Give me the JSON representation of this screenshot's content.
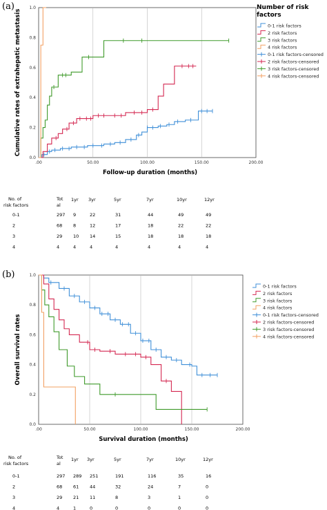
{
  "colors": {
    "s0": "#3f8fd8",
    "s1": "#d42750",
    "s2": "#3f9a2a",
    "s3": "#f2a062"
  },
  "chart_data": [
    {
      "panel": "(a)",
      "type": "line",
      "step": true,
      "legend_title": "Number of risk factors",
      "legend_placement": "right",
      "xlabel": "Follow-up duration (months)",
      "ylabel": "Cumulative rates of extrahepatic metastasis",
      "xlim": [
        0,
        200
      ],
      "ylim": [
        0,
        1
      ],
      "xticks": [
        ".00",
        "50.00",
        "100.00",
        "150.00",
        "200.00"
      ],
      "yticks": [
        "0.0",
        "0.2",
        "0.4",
        "0.6",
        "0.8",
        "1.0"
      ],
      "grid": true,
      "legend": [
        "0-1 risk factors",
        "2 risk factors",
        "3 risk factors",
        "4 risk factors",
        "0-1 risk factors-censored",
        "2 risk factors-censored",
        "3 risk factors-censored",
        "4 risk factors-censored"
      ],
      "series": [
        {
          "name": "0-1 risk factors",
          "x": [
            0,
            3,
            8,
            12,
            20,
            30,
            45,
            60,
            70,
            80,
            90,
            95,
            100,
            110,
            118,
            125,
            135,
            145,
            147,
            160
          ],
          "y": [
            0,
            0.02,
            0.04,
            0.05,
            0.06,
            0.07,
            0.08,
            0.09,
            0.1,
            0.12,
            0.15,
            0.17,
            0.2,
            0.21,
            0.22,
            0.24,
            0.25,
            0.25,
            0.31,
            0.31
          ],
          "censor_x": [
            5,
            10,
            15,
            22,
            28,
            35,
            42,
            50,
            58,
            66,
            75,
            85,
            92,
            100,
            105,
            112,
            120,
            128,
            140,
            150,
            155,
            160
          ]
        },
        {
          "name": "2 risk factors",
          "x": [
            0,
            4,
            8,
            12,
            18,
            22,
            28,
            35,
            50,
            65,
            80,
            85,
            100,
            110,
            115,
            125,
            145
          ],
          "y": [
            0,
            0.04,
            0.09,
            0.13,
            0.16,
            0.19,
            0.23,
            0.26,
            0.28,
            0.28,
            0.3,
            0.3,
            0.32,
            0.41,
            0.49,
            0.61,
            0.61
          ],
          "censor_x": [
            16,
            26,
            32,
            38,
            44,
            48,
            55,
            60,
            70,
            76,
            88,
            95,
            105,
            132,
            138,
            142
          ]
        },
        {
          "name": "3 risk factors",
          "x": [
            0,
            2,
            4,
            6,
            8,
            10,
            12,
            18,
            30,
            40,
            60,
            175
          ],
          "y": [
            0,
            0.13,
            0.2,
            0.25,
            0.35,
            0.41,
            0.47,
            0.55,
            0.57,
            0.67,
            0.78,
            0.78
          ],
          "censor_x": [
            14,
            22,
            25,
            46,
            78,
            95,
            175
          ]
        },
        {
          "name": "4 risk factors",
          "x": [
            0,
            2,
            4,
            7
          ],
          "y": [
            0,
            0.75,
            1.0,
            1.0
          ],
          "censor_x": []
        }
      ],
      "table": {
        "headers": [
          "No. of risk factors",
          "Total",
          "1yr",
          "3yr",
          "5yr",
          "7yr",
          "10yr",
          "12yr"
        ],
        "rows": [
          [
            "0-1",
            "297",
            "9",
            "22",
            "31",
            "44",
            "49",
            "49"
          ],
          [
            "2",
            "68",
            "8",
            "12",
            "17",
            "18",
            "22",
            "22"
          ],
          [
            "3",
            "29",
            "10",
            "14",
            "15",
            "18",
            "18",
            "18"
          ],
          [
            "4",
            "4",
            "4",
            "4",
            "4",
            "4",
            "4",
            "4"
          ]
        ]
      }
    },
    {
      "panel": "(b)",
      "type": "line",
      "step": true,
      "legend_placement": "right",
      "xlabel": "Survival duration (months)",
      "ylabel": "Overall survival rates",
      "xlim": [
        0,
        200
      ],
      "ylim": [
        0,
        1
      ],
      "xticks": [
        ".00",
        "50.00",
        "100.00",
        "150.00",
        "200.00"
      ],
      "yticks": [
        "0.0",
        "0.2",
        "0.4",
        "0.6",
        "0.8",
        "1.0"
      ],
      "grid": true,
      "legend": [
        "0-1 risk factors",
        "2 risk factors",
        "3 risk factors",
        "4 risk factors",
        "0-1 risk factors-censored",
        "2 risk factors-censored",
        "3 risk factors-censored",
        "4 risk factors-censored"
      ],
      "series": [
        {
          "name": "0-1 risk factors",
          "x": [
            0,
            5,
            10,
            20,
            30,
            40,
            50,
            60,
            70,
            80,
            90,
            100,
            110,
            120,
            130,
            140,
            150,
            155,
            175
          ],
          "y": [
            1.0,
            0.98,
            0.95,
            0.91,
            0.86,
            0.82,
            0.78,
            0.74,
            0.7,
            0.67,
            0.61,
            0.56,
            0.5,
            0.45,
            0.43,
            0.4,
            0.39,
            0.33,
            0.33
          ],
          "censor_x": [
            12,
            25,
            35,
            45,
            55,
            62,
            68,
            75,
            82,
            88,
            95,
            102,
            108,
            115,
            125,
            135,
            148,
            160,
            168,
            175
          ]
        },
        {
          "name": "2 risk factors",
          "x": [
            0,
            5,
            10,
            15,
            20,
            25,
            30,
            40,
            50,
            60,
            75,
            90,
            100,
            110,
            120,
            130,
            140
          ],
          "y": [
            1.0,
            0.94,
            0.84,
            0.77,
            0.7,
            0.64,
            0.6,
            0.55,
            0.5,
            0.49,
            0.47,
            0.47,
            0.45,
            0.4,
            0.29,
            0.22,
            0.0
          ],
          "censor_x": [
            48,
            55,
            70,
            85,
            95,
            105,
            125
          ]
        },
        {
          "name": "3 risk factors",
          "x": [
            0,
            3,
            6,
            10,
            15,
            20,
            28,
            35,
            45,
            60,
            65,
            115,
            165
          ],
          "y": [
            1.0,
            0.9,
            0.8,
            0.72,
            0.62,
            0.5,
            0.39,
            0.32,
            0.27,
            0.2,
            0.2,
            0.1,
            0.1
          ],
          "censor_x": [
            75,
            165
          ]
        },
        {
          "name": "4 risk factors",
          "x": [
            0,
            3,
            5,
            35,
            36
          ],
          "y": [
            1.0,
            0.75,
            0.25,
            0.25,
            0.0
          ],
          "censor_x": []
        }
      ],
      "table": {
        "headers": [
          "No. of risk factors",
          "Total",
          "1yr",
          "3yr",
          "5yr",
          "7yr",
          "10yr",
          "12yr"
        ],
        "rows": [
          [
            "0-1",
            "297",
            "289",
            "251",
            "191",
            "116",
            "35",
            "16"
          ],
          [
            "2",
            "68",
            "61",
            "44",
            "32",
            "24",
            "7",
            "0"
          ],
          [
            "3",
            "29",
            "21",
            "11",
            "8",
            "3",
            "1",
            "0"
          ],
          [
            "4",
            "4",
            "1",
            "0",
            "0",
            "0",
            "0",
            "0"
          ]
        ]
      }
    }
  ],
  "panel_a": {
    "label": "(a)",
    "legend_title_line1": "Number of risk",
    "legend_title_line2": "factors",
    "table_head": {
      "c1a": "No. of",
      "c1b": "risk factors",
      "c2a": "Tot",
      "c2b": "al",
      "h1": "1yr",
      "h3": "3yr",
      "h5": "5yr",
      "h7": "7yr",
      "h10": "10yr",
      "h12": "12yr"
    }
  },
  "panel_b": {
    "label": "(b)",
    "table_head": {
      "c1a": "No. of",
      "c1b": "risk factors",
      "c2a": "Tot",
      "c2b": "al",
      "h1": "1yr",
      "h3": "3yr",
      "h5": "5yr",
      "h7": "7yr",
      "h10": "10yr",
      "h12": "12yr"
    }
  }
}
